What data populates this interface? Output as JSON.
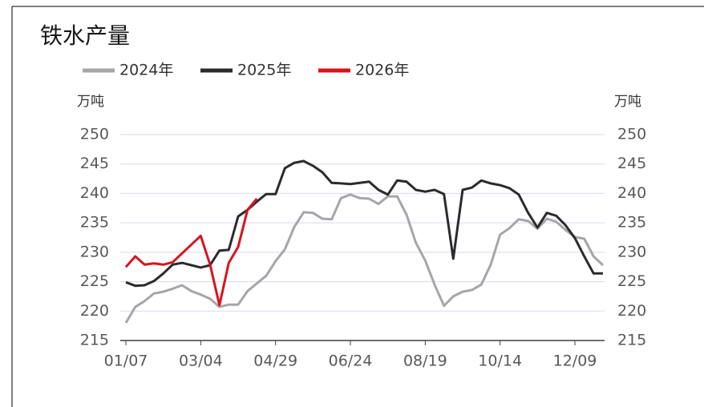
{
  "chart_data": {
    "type": "line",
    "title": "铁水产量",
    "y_unit": "万吨",
    "categories": [
      "01/07",
      null,
      null,
      null,
      null,
      null,
      null,
      null,
      "03/04",
      null,
      null,
      null,
      null,
      null,
      null,
      null,
      "04/29",
      null,
      null,
      null,
      null,
      null,
      null,
      null,
      "06/24",
      null,
      null,
      null,
      null,
      null,
      null,
      null,
      "08/19",
      null,
      null,
      null,
      null,
      null,
      null,
      null,
      "10/14",
      null,
      null,
      null,
      null,
      null,
      null,
      null,
      "12/09",
      null,
      null,
      null
    ],
    "series": [
      {
        "name": "2024年",
        "color": "#a6a6a6",
        "values": [
          218.0,
          220.7,
          221.7,
          223.0,
          223.3,
          223.8,
          224.4,
          223.4,
          222.8,
          222.1,
          220.7,
          221.1,
          221.1,
          223.4,
          224.7,
          226.0,
          228.5,
          230.5,
          234.3,
          236.8,
          236.7,
          235.7,
          235.6,
          239.2,
          239.8,
          239.2,
          239.1,
          238.2,
          239.5,
          239.5,
          236.4,
          231.6,
          228.6,
          224.5,
          220.9,
          222.5,
          223.3,
          223.6,
          224.5,
          227.9,
          233.0,
          234.1,
          235.6,
          235.3,
          234.0,
          235.7,
          235.2,
          233.8,
          232.6,
          232.3,
          229.3,
          227.8
        ]
      },
      {
        "name": "2025年",
        "color": "#2b2b2b",
        "values": [
          224.9,
          224.3,
          224.4,
          225.1,
          226.4,
          227.9,
          228.2,
          227.8,
          227.4,
          227.8,
          230.3,
          230.4,
          236.1,
          237.2,
          238.6,
          239.9,
          239.9,
          244.3,
          245.2,
          245.5,
          244.7,
          243.6,
          241.8,
          241.7,
          241.6,
          241.8,
          242.0,
          240.6,
          239.8,
          242.2,
          242.0,
          240.6,
          240.3,
          240.6,
          239.9,
          228.9,
          240.6,
          241.0,
          242.2,
          241.7,
          241.4,
          240.9,
          239.8,
          236.7,
          234.2,
          236.7,
          236.2,
          234.6,
          232.4,
          229.3,
          226.4,
          226.4
        ]
      },
      {
        "name": "2026年",
        "color": "#d7141e",
        "values": [
          227.5,
          229.3,
          227.9,
          228.1,
          227.9,
          228.3,
          229.8,
          231.3,
          232.8,
          227.9,
          221.0,
          228.2,
          230.9,
          237.2,
          239.1,
          null,
          null,
          null,
          null,
          null,
          null,
          null,
          null,
          null,
          null,
          null,
          null,
          null,
          null,
          null,
          null,
          null,
          null,
          null,
          null,
          null,
          null,
          null,
          null,
          null,
          null,
          null,
          null,
          null,
          null,
          null,
          null,
          null,
          null,
          null,
          null,
          null
        ]
      }
    ],
    "ylim": [
      215,
      250
    ],
    "yticks": [
      215,
      220,
      225,
      230,
      235,
      240,
      245,
      250
    ],
    "grid": true
  }
}
